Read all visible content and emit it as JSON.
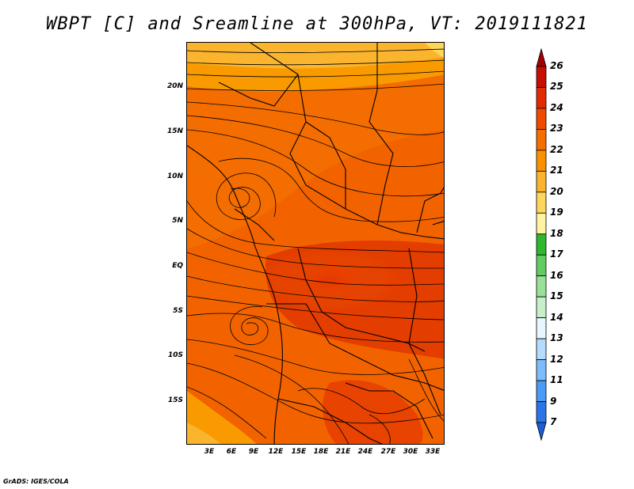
{
  "title": "WBPT [C] and Sreamline at 300hPa, VT: 2019111821",
  "credit": "GrADS: IGES/COLA",
  "lat_labels": [
    "20N",
    "15N",
    "10N",
    "5N",
    "EQ",
    "5S",
    "10S",
    "15S"
  ],
  "lon_labels": [
    "3E",
    "6E",
    "9E",
    "12E",
    "15E",
    "18E",
    "21E",
    "24E",
    "27E",
    "30E",
    "33E"
  ],
  "colorbar": {
    "labels": [
      "26",
      "25",
      "24",
      "23",
      "22",
      "21",
      "20",
      "19",
      "18",
      "17",
      "16",
      "15",
      "14",
      "13",
      "12",
      "11",
      "9",
      "7"
    ],
    "colors": [
      "#a50000",
      "#c80e00",
      "#e32b00",
      "#f04a00",
      "#f56e00",
      "#f99100",
      "#fbb42e",
      "#fdd65a",
      "#fdf3a0",
      "#2eb82e",
      "#62cc62",
      "#99e099",
      "#c8f0c8",
      "#e6f7ff",
      "#b3dcff",
      "#7ebdfc",
      "#4a9bf5",
      "#2a76e6",
      "#1a5fd6"
    ]
  },
  "map": {
    "type": "wet-bulb potential temperature field with streamlines",
    "region": "Central and Southern Africa, 0-34E, 19S-24N",
    "dominant_range": "22-24",
    "warmest_region": "Congo basin, 24",
    "coolest_region": "northern edge, 20-21"
  }
}
